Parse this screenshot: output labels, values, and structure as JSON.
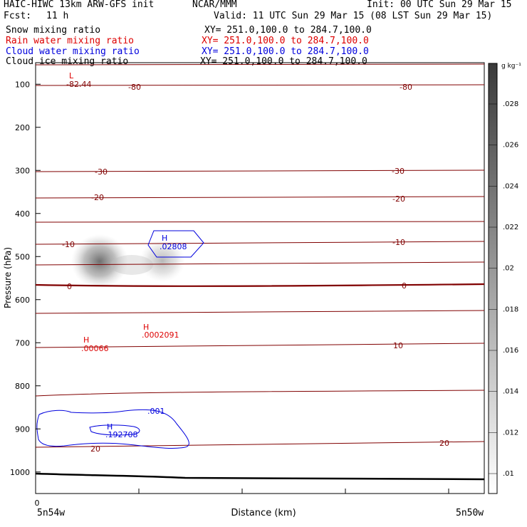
{
  "header": {
    "model_line": "HAIC-HIWC 13km ARW-GFS init",
    "org": "NCAR/MMM",
    "init": "Init: 00 UTC Sun 29 Mar 15",
    "fcst_label": "Fcst:",
    "fcst_value": "11 h",
    "valid": "Valid: 11 UTC Sun 29 Mar 15 (08 LST Sun 29 Mar 15)"
  },
  "fields": [
    {
      "label": "Snow mixing ratio",
      "xy": "XY= 251.0,100.0 to 284.7,100.0",
      "color": "#000000"
    },
    {
      "label": "Rain water mixing ratio",
      "xy": "XY= 251.0,100.0 to 284.7,100.0",
      "color": "#dd0000"
    },
    {
      "label": "Cloud water mixing ratio",
      "xy": "XY= 251.0,100.0 to 284.7,100.0",
      "color": "#0000dd"
    },
    {
      "label": "Cloud ice mixing ratio",
      "xy": "XY= 251.0,100.0 to 284.7,100.0",
      "color": "#000000"
    }
  ],
  "chart_data": {
    "type": "cross-section",
    "ylabel": "Pressure (hPa)",
    "xlabel": "Distance (km)",
    "x_origin_label": "0",
    "x_left_label": "5n54w",
    "x_right_label": "5n50w",
    "y_ticks": [
      100,
      200,
      300,
      400,
      500,
      600,
      700,
      800,
      900,
      1000
    ],
    "ylim": [
      1050,
      50
    ],
    "colorbar": {
      "unit": "g kg⁻¹",
      "ticks": [
        ".01",
        ".012",
        ".014",
        ".016",
        ".018",
        ".02",
        ".022",
        ".024",
        ".026",
        ".028"
      ]
    },
    "temperature_contour_labels": [
      "-82.44",
      "-80",
      "-80",
      "-30",
      "-30",
      "-20",
      "-20",
      "-10",
      "-10",
      "0",
      "0",
      "10",
      "20",
      "20"
    ],
    "extrema": [
      {
        "mark": "L",
        "value": "",
        "color": "#800000"
      },
      {
        "mark": "H",
        "value": ".02808",
        "color": "#0000dd"
      },
      {
        "mark": "H",
        "value": ".0002091",
        "color": "#dd0000"
      },
      {
        "mark": "H",
        "value": ".00066",
        "color": "#dd0000"
      },
      {
        "mark": "H",
        "value": ".192708",
        "color": "#0000dd"
      }
    ],
    "cloud_water_contour_label": ".001",
    "snow_maxima_hPa": [
      510,
      505
    ]
  },
  "colors": {
    "temperature": "#800000",
    "rain": "#dd0000",
    "cloud_water": "#0000dd",
    "ground": "#000000"
  }
}
